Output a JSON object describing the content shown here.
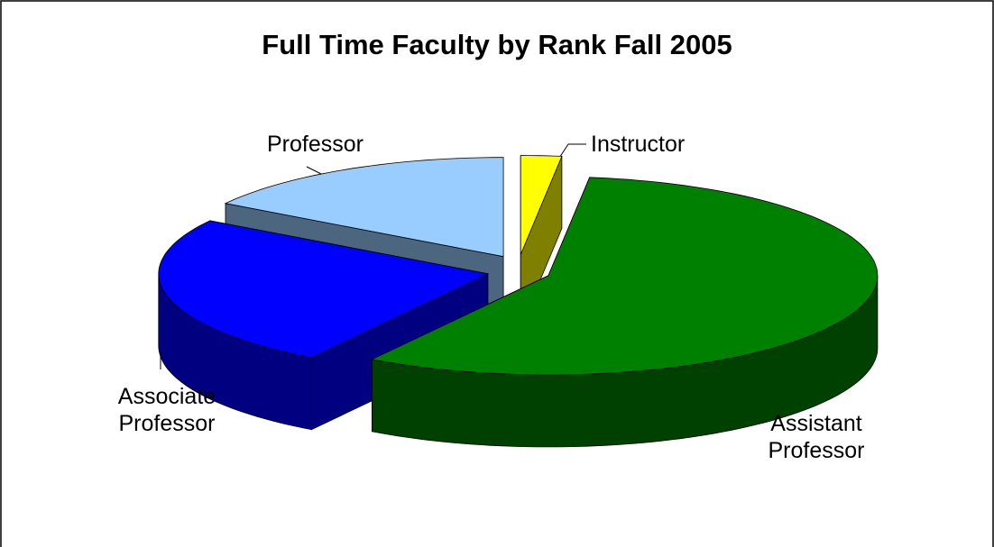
{
  "chart_data": {
    "type": "pie",
    "title": "Full Time Faculty by Rank Fall 2005",
    "categories": [
      "Instructor",
      "Assistant Professor",
      "Associate Professor",
      "Professor"
    ],
    "values": [
      2,
      57,
      25,
      16
    ],
    "colors": [
      "#ffff00",
      "#008000",
      "#0000ff",
      "#99ccff"
    ]
  }
}
